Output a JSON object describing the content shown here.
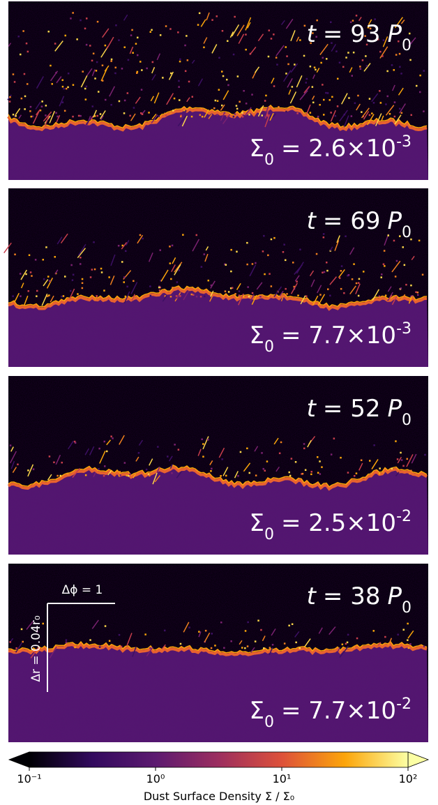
{
  "chart_data": {
    "type": "colorbar",
    "panels": [
      {
        "time_symbol": "t",
        "time_value": "= 93",
        "time_unit": "P",
        "time_subscript": "0",
        "sigma_symbol": "Σ",
        "sigma_subscript": "0",
        "sigma_value": "= 2.6×10",
        "sigma_exponent": "-3"
      },
      {
        "time_symbol": "t",
        "time_value": "= 69",
        "time_unit": "P",
        "time_subscript": "0",
        "sigma_symbol": "Σ",
        "sigma_subscript": "0",
        "sigma_value": "= 7.7×10",
        "sigma_exponent": "-3"
      },
      {
        "time_symbol": "t",
        "time_value": "= 52",
        "time_unit": "P",
        "time_subscript": "0",
        "sigma_symbol": "Σ",
        "sigma_subscript": "0",
        "sigma_value": "= 2.5×10",
        "sigma_exponent": "-2"
      },
      {
        "time_symbol": "t",
        "time_value": "= 38",
        "time_unit": "P",
        "time_subscript": "0",
        "sigma_symbol": "Σ",
        "sigma_subscript": "0",
        "sigma_value": "= 7.7×10",
        "sigma_exponent": "-2"
      }
    ],
    "scale_bar": {
      "horizontal": "Δϕ = 1",
      "vertical": "Δr = 0.04r₀"
    },
    "colorbar_label": "Dust Surface Density Σ / Σ₀",
    "xscale": "log",
    "xlim": [
      0.1,
      100
    ],
    "xticks": [
      {
        "value": 0.1,
        "label": "10⁻¹"
      },
      {
        "value": 1,
        "label": "10⁰"
      },
      {
        "value": 10,
        "label": "10¹"
      },
      {
        "value": 100,
        "label": "10²"
      }
    ],
    "colors": [
      "#000004",
      "#320a5e",
      "#5c1a70",
      "#9c2e5f",
      "#dd513a",
      "#fca50a",
      "#fcffa4"
    ]
  }
}
